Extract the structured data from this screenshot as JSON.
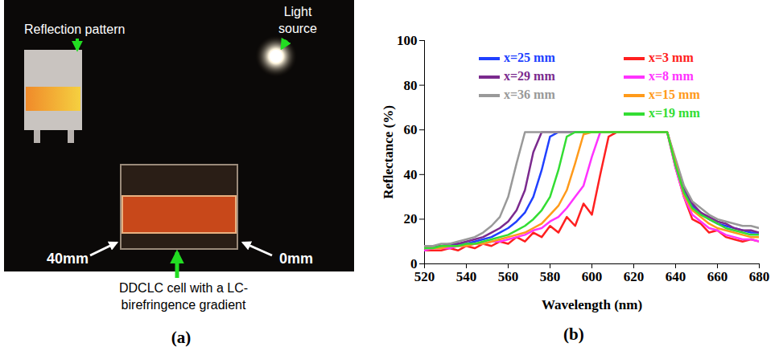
{
  "panel_labels": [
    "(a)",
    "(b)"
  ],
  "photo_panel": {
    "reflection_pattern": "Reflection pattern",
    "light_source": [
      "Light",
      "source"
    ],
    "left_end": "40mm",
    "right_end": "0mm",
    "cell": [
      "DDCLC cell with a LC-",
      "birefringence gradient"
    ]
  },
  "chart_data": {
    "type": "line",
    "x_label": "Wavelength (nm)",
    "y_label": "Reflectance (%)",
    "xlim": [
      520,
      680
    ],
    "xticks": [
      520,
      540,
      560,
      580,
      600,
      620,
      640,
      660,
      680
    ],
    "ylim": [
      0,
      100
    ],
    "yticks": [
      0,
      20,
      40,
      60,
      80,
      100
    ],
    "grid": false,
    "legend": "top",
    "x": [
      520,
      524,
      528,
      532,
      536,
      540,
      544,
      548,
      552,
      556,
      560,
      564,
      568,
      572,
      576,
      580,
      584,
      588,
      592,
      596,
      600,
      604,
      608,
      612,
      616,
      620,
      624,
      628,
      632,
      636,
      640,
      644,
      648,
      652,
      656,
      660,
      664,
      668,
      672,
      676,
      680
    ],
    "series": [
      {
        "name": "x=25 mm",
        "color": "#2040ff",
        "values": [
          8,
          8,
          8,
          8,
          9,
          9,
          10,
          11,
          12,
          14,
          16,
          19,
          23,
          30,
          42,
          57,
          59,
          59,
          59,
          59,
          59,
          59,
          59,
          59,
          59,
          59,
          59,
          59,
          59,
          59,
          45,
          33,
          26,
          23,
          20,
          18,
          17,
          16,
          15,
          14,
          14
        ]
      },
      {
        "name": "x=29 mm",
        "color": "#7b2a8e",
        "values": [
          8,
          8,
          8,
          9,
          9,
          10,
          11,
          12,
          14,
          16,
          19,
          24,
          33,
          50,
          59,
          59,
          59,
          59,
          59,
          59,
          59,
          59,
          59,
          59,
          59,
          59,
          59,
          59,
          59,
          59,
          46,
          34,
          27,
          23,
          21,
          19,
          18,
          16,
          15,
          15,
          14
        ]
      },
      {
        "name": "x=36 mm",
        "color": "#999999",
        "values": [
          8,
          8,
          9,
          9,
          10,
          11,
          12,
          14,
          17,
          21,
          30,
          45,
          59,
          59,
          59,
          59,
          59,
          59,
          59,
          59,
          59,
          59,
          59,
          59,
          59,
          59,
          59,
          59,
          59,
          59,
          47,
          35,
          28,
          25,
          22,
          20,
          19,
          18,
          17,
          17,
          16
        ]
      },
      {
        "name": "x=3 mm",
        "color": "#ff2020",
        "values": [
          6,
          6,
          6,
          7,
          6,
          8,
          7,
          9,
          8,
          10,
          9,
          12,
          10,
          14,
          12,
          17,
          14,
          21,
          17,
          27,
          22,
          40,
          57,
          59,
          59,
          59,
          59,
          59,
          59,
          59,
          43,
          30,
          20,
          18,
          14,
          15,
          12,
          11,
          10,
          11,
          10
        ]
      },
      {
        "name": "x=8 mm",
        "color": "#ff33ff",
        "values": [
          6,
          7,
          7,
          7,
          8,
          8,
          9,
          9,
          10,
          10,
          11,
          12,
          13,
          15,
          16,
          19,
          21,
          25,
          30,
          35,
          48,
          59,
          59,
          59,
          59,
          59,
          59,
          59,
          59,
          59,
          43,
          30,
          22,
          19,
          16,
          15,
          13,
          12,
          11,
          11,
          10
        ]
      },
      {
        "name": "x=15 mm",
        "color": "#ff9a1a",
        "values": [
          7,
          7,
          7,
          8,
          8,
          8,
          9,
          9,
          10,
          11,
          12,
          13,
          14,
          16,
          18,
          22,
          26,
          33,
          45,
          58,
          59,
          59,
          59,
          59,
          59,
          59,
          59,
          59,
          59,
          59,
          45,
          31,
          24,
          21,
          18,
          16,
          15,
          14,
          13,
          12,
          12
        ]
      },
      {
        "name": "x=19 mm",
        "color": "#33dd33",
        "values": [
          7,
          7,
          8,
          8,
          8,
          9,
          9,
          10,
          11,
          12,
          13,
          15,
          17,
          20,
          24,
          30,
          42,
          57,
          59,
          59,
          59,
          59,
          59,
          59,
          59,
          59,
          59,
          59,
          59,
          59,
          44,
          32,
          25,
          22,
          20,
          18,
          16,
          15,
          14,
          13,
          13
        ]
      }
    ]
  }
}
